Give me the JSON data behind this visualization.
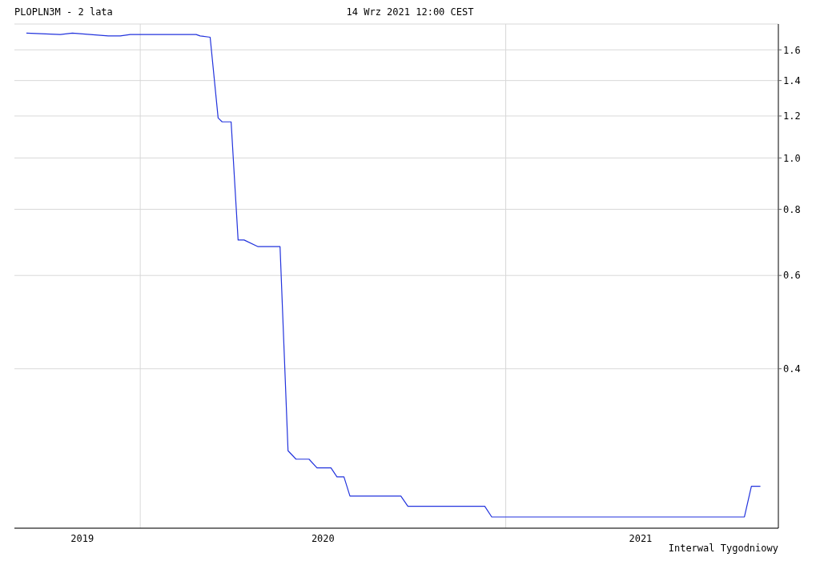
{
  "chart_data": {
    "type": "line",
    "title": "PLOPLN3M - 2 lata",
    "subtitle": "14 Wrz 2021 12:00 CEST",
    "annotations": [
      "Interwal Tygodniowy"
    ],
    "x": [
      "2019-09-09",
      "2019-10-13",
      "2019-10-25",
      "2019-11-30",
      "2019-12-12",
      "2019-12-22",
      "2020-02-26",
      "2020-03-01",
      "2020-03-11",
      "2020-03-19",
      "2020-03-23",
      "2020-04-01",
      "2020-04-08",
      "2020-04-14",
      "2020-04-28",
      "2020-05-20",
      "2020-05-28",
      "2020-06-05",
      "2020-06-18",
      "2020-06-26",
      "2020-07-10",
      "2020-07-16",
      "2020-07-23",
      "2020-07-29",
      "2020-09-18",
      "2020-09-25",
      "2020-12-11",
      "2020-12-18",
      "2021-08-28",
      "2021-09-04",
      "2021-09-13"
    ],
    "series": [
      {
        "color": "#2233dd",
        "values": [
          1.72,
          1.71,
          1.72,
          1.7,
          1.7,
          1.71,
          1.71,
          1.7,
          1.69,
          1.19,
          1.17,
          1.17,
          0.7,
          0.7,
          0.68,
          0.68,
          0.28,
          0.27,
          0.27,
          0.26,
          0.26,
          0.25,
          0.25,
          0.23,
          0.23,
          0.22,
          0.22,
          0.21,
          0.21,
          0.24,
          0.24
        ]
      }
    ],
    "xlim": [
      "2019-08-28",
      "2021-10-01"
    ],
    "xticks": [
      {
        "value": "2019-11-04",
        "label": "2019"
      },
      {
        "value": "2020-01-01",
        "label": null
      },
      {
        "value": "2020-07-02",
        "label": "2020"
      },
      {
        "value": "2021-01-01",
        "label": null
      },
      {
        "value": "2021-05-16",
        "label": "2021"
      }
    ],
    "ylim": [
      0.2,
      1.79
    ],
    "yticks": [
      0.4,
      0.6,
      0.8,
      {
        "value": 1,
        "label": "1.0"
      },
      1.2,
      1.4,
      1.6
    ],
    "log": true,
    "grid": true,
    "marker": "none",
    "line_style": "solid",
    "legend": false
  }
}
